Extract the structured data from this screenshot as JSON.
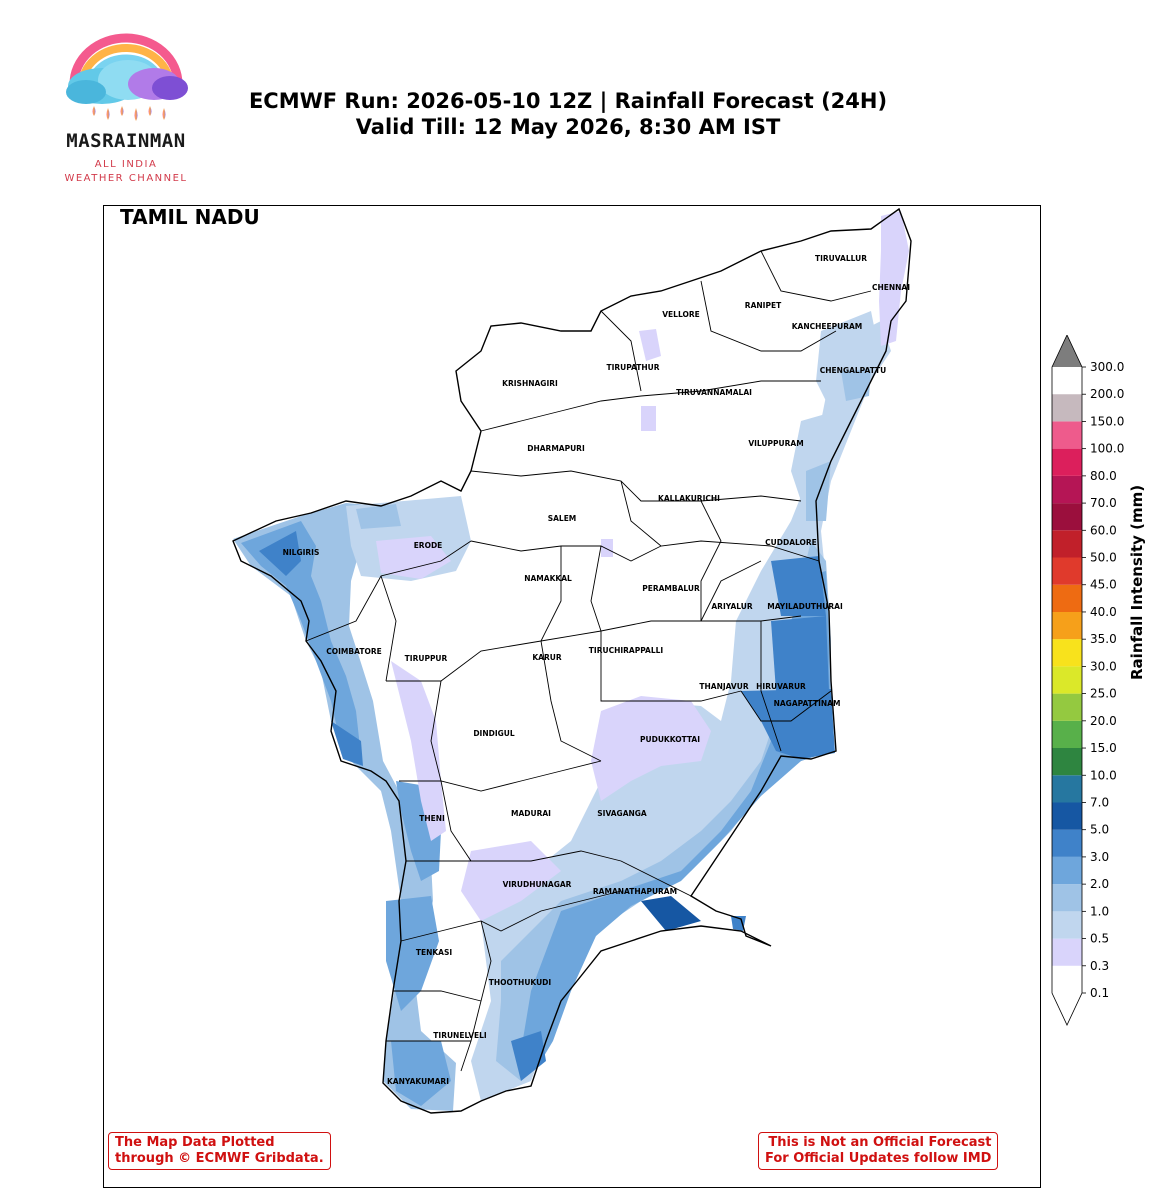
{
  "logo": {
    "name": "MASRAINMAN",
    "tagline_line1": "ALL INDIA",
    "tagline_line2": "WEATHER CHANNEL"
  },
  "title": {
    "line1": "ECMWF Run: 2026-05-10 12Z | Rainfall Forecast (24H)",
    "line2": "Valid Till: 12 May 2026, 8:30 AM IST"
  },
  "map": {
    "region": "TAMIL NADU",
    "districts": [
      "TIRUVALLUR",
      "CHENNAI",
      "RANIPET",
      "VELLORE",
      "KANCHEEPURAM",
      "CHENGALPATTU",
      "TIRUPATHUR",
      "KRISHNAGIRI",
      "TIRUVANNAMALAI",
      "DHARMAPURI",
      "VILUPPURAM",
      "KALLAKURICHI",
      "SALEM",
      "ERODE",
      "NILGIRIS",
      "CUDDALORE",
      "NAMAKKAL",
      "PERAMBALUR",
      "ARIYALUR",
      "MAYILADUTHURAI",
      "COIMBATORE",
      "TIRUPPUR",
      "KARUR",
      "TIRUCHIRAPPALLI",
      "THANJAVUR",
      "HIRUVARUR",
      "NAGAPATTINAM",
      "DINDIGUL",
      "PUDUKKOTTAI",
      "THENI",
      "MADURAI",
      "SIVAGANGA",
      "VIRUDHUNAGAR",
      "RAMANATHAPURAM",
      "TENKASI",
      "THOOTHUKUDI",
      "TIRUNELVELI",
      "KANYAKUMARI"
    ]
  },
  "colorbar": {
    "title": "Rainfall Intensity (mm)",
    "levels": [
      "0.1",
      "0.3",
      "0.5",
      "1.0",
      "2.0",
      "3.0",
      "5.0",
      "7.0",
      "10.0",
      "15.0",
      "20.0",
      "25.0",
      "30.0",
      "35.0",
      "40.0",
      "45.0",
      "50.0",
      "60.0",
      "70.0",
      "80.0",
      "100.0",
      "150.0",
      "200.0",
      "300.0"
    ],
    "colors": [
      "#ffffff",
      "#d9d4fb",
      "#c0d6ee",
      "#9fc3e6",
      "#6ea6dc",
      "#3f82c9",
      "#1657a3",
      "#2677a0",
      "#2e8540",
      "#58b04a",
      "#94c940",
      "#dbe829",
      "#f8e21c",
      "#f6a01a",
      "#ee6b12",
      "#e03a2c",
      "#c1202a",
      "#9b0f3d",
      "#b51555",
      "#dc1f5c",
      "#ee5b8c",
      "#c6b9be",
      "#7d7d7d"
    ]
  },
  "notes": {
    "left_line1": "The Map Data Plotted",
    "left_line2": "through © ECMWF Gribdata.",
    "right_line1": "This is Not an Official Forecast",
    "right_line2": "For Official Updates follow IMD"
  }
}
